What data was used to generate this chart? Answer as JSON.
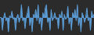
{
  "values": [
    0,
    0,
    -8,
    0,
    3,
    -2,
    0,
    -9,
    1,
    0,
    4,
    -1,
    0,
    -8,
    0,
    2,
    -3,
    0,
    8,
    -2,
    0,
    -7,
    0,
    3,
    7,
    -5,
    0,
    -9,
    2,
    0,
    5,
    -2,
    8,
    -4,
    0,
    -8,
    3,
    0,
    6,
    8,
    -3,
    0,
    -8,
    5,
    -2,
    0,
    3,
    -1,
    0,
    -7,
    2,
    0,
    4,
    -8,
    2,
    -1,
    0,
    7,
    -4,
    0,
    -8,
    3,
    0,
    5,
    -2,
    8,
    -5,
    0,
    -9,
    3,
    1,
    -3,
    0,
    6,
    -2,
    0,
    -8,
    4,
    0,
    2
  ],
  "line_color": "#5B9BD5",
  "fill_color": "#5B9BD5",
  "background_color": "#2b2b2b",
  "baseline": 0,
  "ylim": [
    -11,
    11
  ]
}
